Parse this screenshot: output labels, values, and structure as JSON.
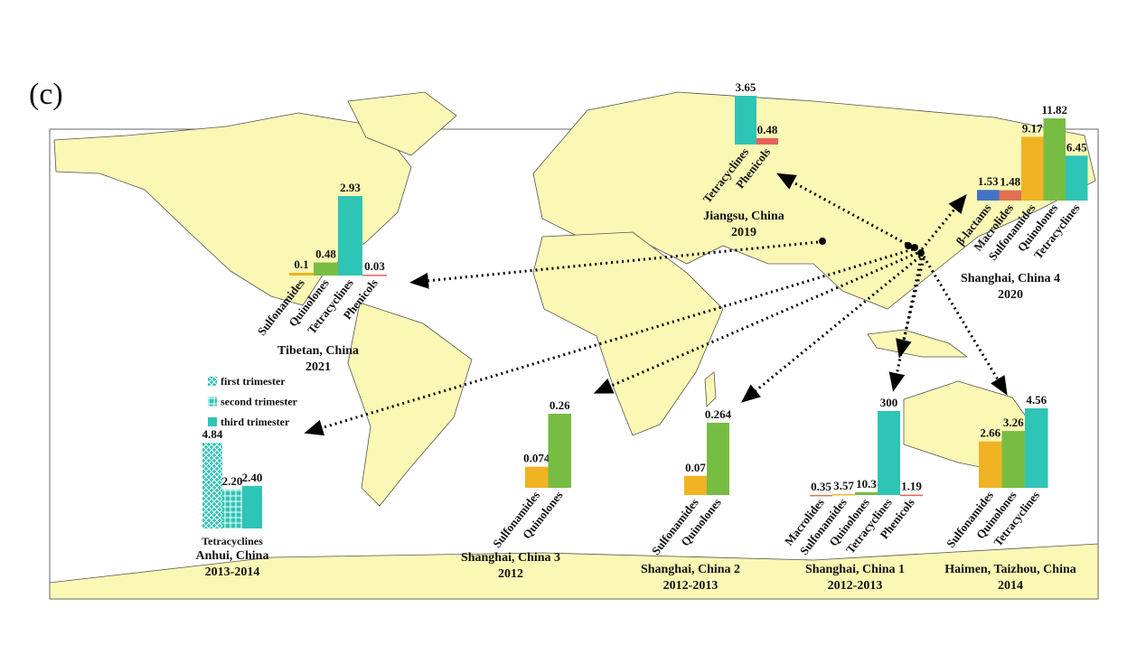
{
  "panel_label": "(c)",
  "chart_data": [
    {
      "type": "bar",
      "title": "Tibetan, China",
      "subtitle": "2021",
      "categories": [
        "Sulfonamides",
        "Quinolones",
        "Tetracyclines",
        "Phenicols"
      ],
      "values": [
        0.1,
        0.48,
        2.93,
        0.03
      ],
      "colors": [
        "#f0b323",
        "#77bc43",
        "#2ec4b6",
        "#e8615a"
      ]
    },
    {
      "type": "bar",
      "title": "Jiangsu, China",
      "subtitle": "2019",
      "categories": [
        "Tetracyclines",
        "Phenicols"
      ],
      "values": [
        3.65,
        0.48
      ],
      "colors": [
        "#2ec4b6",
        "#e8615a"
      ]
    },
    {
      "type": "bar",
      "title": "Shanghai, China 4",
      "subtitle": "2020",
      "categories": [
        "β-lactams",
        "Macrolides",
        "Sulfonamides",
        "Quinolones",
        "Tetracyclines"
      ],
      "values": [
        1.53,
        1.48,
        9.17,
        11.82,
        6.45
      ],
      "colors": [
        "#4472c4",
        "#e07050",
        "#f0b323",
        "#77bc43",
        "#2ec4b6"
      ]
    },
    {
      "type": "grouped_bar",
      "title": "Anhui, China",
      "subtitle": "2013-2014",
      "categories": [
        "Tetracyclines"
      ],
      "legend": "left",
      "series": [
        {
          "name": "first trimester",
          "color": "#2ec4b6",
          "pattern": "crosshatch",
          "values": [
            4.84
          ]
        },
        {
          "name": "second trimester",
          "color": "#2ec4b6",
          "pattern": "grid",
          "values": [
            2.2
          ],
          "value_labels": [
            "2.20"
          ]
        },
        {
          "name": "third trimester",
          "color": "#2ec4b6",
          "pattern": "solid",
          "values": [
            2.4
          ],
          "value_labels": [
            "2.40"
          ]
        }
      ]
    },
    {
      "type": "bar",
      "title": "Shanghai, China 3",
      "subtitle": "2012",
      "categories": [
        "Sulfonamides",
        "Quinolones"
      ],
      "values": [
        0.074,
        0.26
      ],
      "colors": [
        "#f0b323",
        "#77bc43"
      ]
    },
    {
      "type": "bar",
      "title": "Shanghai, China 2",
      "subtitle": "2012-2013",
      "categories": [
        "Sulfonamides",
        "Quinolones"
      ],
      "values": [
        0.07,
        0.264
      ],
      "colors": [
        "#f0b323",
        "#77bc43"
      ]
    },
    {
      "type": "bar",
      "title": "Shanghai, China 1",
      "subtitle": "2012-2013",
      "categories": [
        "Macrolides",
        "Sulfonamides",
        "Quinolones",
        "Tetracyclines",
        "Phenicols"
      ],
      "values": [
        0.35,
        3.57,
        10.3,
        300,
        1.19
      ],
      "colors": [
        "#e07050",
        "#f0b323",
        "#77bc43",
        "#2ec4b6",
        "#e8615a"
      ]
    },
    {
      "type": "bar",
      "title": "Haimen, Taizhou, China",
      "subtitle": "2014",
      "categories": [
        "Sulfonamides",
        "Quinolones",
        "Tetracyclines"
      ],
      "values": [
        2.66,
        3.26,
        4.56
      ],
      "colors": [
        "#f0b323",
        "#77bc43",
        "#2ec4b6"
      ]
    }
  ]
}
